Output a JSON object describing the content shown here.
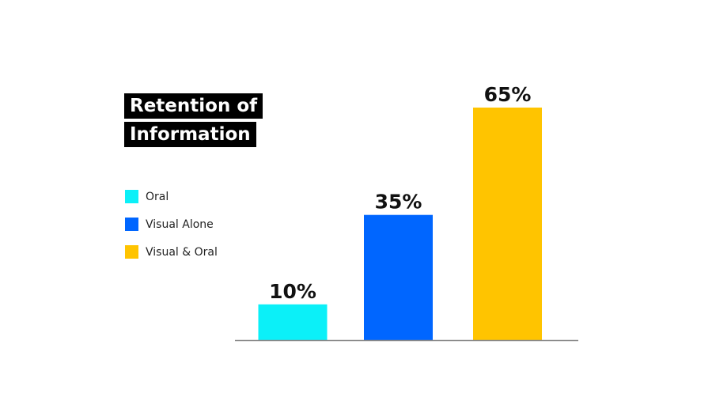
{
  "chart_data": {
    "type": "bar",
    "title": "Retention of Information",
    "categories": [
      "Oral",
      "Visual Alone",
      "Visual & Oral"
    ],
    "values": [
      10,
      35,
      65
    ],
    "value_labels": [
      "10%",
      "35%",
      "65%"
    ],
    "colors": [
      "#0bf0f8",
      "#0066ff",
      "#ffc400"
    ]
  }
}
